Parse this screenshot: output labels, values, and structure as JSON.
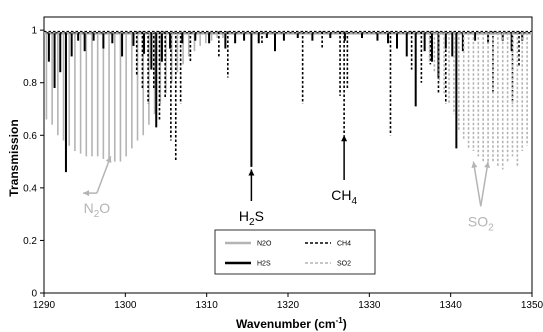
{
  "chart_data": {
    "type": "line",
    "xlabel": "Wavenumber (cm",
    "xlabel_superscript": "-1",
    "xlabel_close": ")",
    "ylabel": "Transmission",
    "xlim": [
      1290,
      1350
    ],
    "ylim": [
      0,
      1.05
    ],
    "x_ticks": [
      "1290",
      "1300",
      "1310",
      "1320",
      "1330",
      "1340",
      "1350"
    ],
    "y_ticks": [
      "0",
      "0.2",
      "0.4",
      "0.6",
      "0.8",
      "1"
    ],
    "grid": false,
    "legend_position": "bottom-center",
    "series": [
      {
        "name": "N2O",
        "color": "#b4b4b4",
        "style": "solid",
        "lines": [
          {
            "x": 1290.3,
            "y": 0.66
          },
          {
            "x": 1291.0,
            "y": 0.64
          },
          {
            "x": 1291.7,
            "y": 0.6
          },
          {
            "x": 1292.4,
            "y": 0.58
          },
          {
            "x": 1293.1,
            "y": 0.56
          },
          {
            "x": 1293.8,
            "y": 0.54
          },
          {
            "x": 1294.5,
            "y": 0.53
          },
          {
            "x": 1295.2,
            "y": 0.52
          },
          {
            "x": 1295.9,
            "y": 0.52
          },
          {
            "x": 1296.6,
            "y": 0.52
          },
          {
            "x": 1297.3,
            "y": 0.51
          },
          {
            "x": 1298.0,
            "y": 0.51
          },
          {
            "x": 1298.7,
            "y": 0.5
          },
          {
            "x": 1299.4,
            "y": 0.5
          },
          {
            "x": 1300.1,
            "y": 0.52
          },
          {
            "x": 1300.8,
            "y": 0.55
          },
          {
            "x": 1301.5,
            "y": 0.58
          },
          {
            "x": 1302.2,
            "y": 0.6
          },
          {
            "x": 1302.9,
            "y": 0.64
          },
          {
            "x": 1303.6,
            "y": 0.68
          },
          {
            "x": 1304.3,
            "y": 0.72
          },
          {
            "x": 1305.0,
            "y": 0.76
          },
          {
            "x": 1305.7,
            "y": 0.8
          },
          {
            "x": 1306.4,
            "y": 0.84
          },
          {
            "x": 1307.1,
            "y": 0.87
          },
          {
            "x": 1307.8,
            "y": 0.9
          },
          {
            "x": 1308.5,
            "y": 0.92
          },
          {
            "x": 1309.2,
            "y": 0.94
          },
          {
            "x": 1309.9,
            "y": 0.95
          },
          {
            "x": 1310.6,
            "y": 0.96
          },
          {
            "x": 1311.3,
            "y": 0.97
          },
          {
            "x": 1312.0,
            "y": 0.97
          }
        ]
      },
      {
        "name": "H2S",
        "color": "#000000",
        "style": "solid",
        "lines": [
          {
            "x": 1290.6,
            "y": 0.88
          },
          {
            "x": 1291.3,
            "y": 0.78
          },
          {
            "x": 1292.0,
            "y": 0.84
          },
          {
            "x": 1292.7,
            "y": 0.46
          },
          {
            "x": 1293.4,
            "y": 0.9
          },
          {
            "x": 1294.2,
            "y": 0.96
          },
          {
            "x": 1295.0,
            "y": 0.92
          },
          {
            "x": 1296.1,
            "y": 0.96
          },
          {
            "x": 1297.3,
            "y": 0.93
          },
          {
            "x": 1298.4,
            "y": 0.95
          },
          {
            "x": 1299.6,
            "y": 0.9
          },
          {
            "x": 1301.0,
            "y": 0.94
          },
          {
            "x": 1302.3,
            "y": 0.91
          },
          {
            "x": 1303.2,
            "y": 0.85
          },
          {
            "x": 1303.8,
            "y": 0.63
          },
          {
            "x": 1304.5,
            "y": 0.88
          },
          {
            "x": 1305.5,
            "y": 0.93
          },
          {
            "x": 1307.0,
            "y": 0.95
          },
          {
            "x": 1308.6,
            "y": 0.96
          },
          {
            "x": 1310.3,
            "y": 0.95
          },
          {
            "x": 1312.3,
            "y": 0.93
          },
          {
            "x": 1313.5,
            "y": 0.95
          },
          {
            "x": 1314.6,
            "y": 0.96
          },
          {
            "x": 1315.5,
            "y": 0.48
          },
          {
            "x": 1316.4,
            "y": 0.95
          },
          {
            "x": 1317.4,
            "y": 0.97
          },
          {
            "x": 1318.4,
            "y": 0.92
          },
          {
            "x": 1319.5,
            "y": 0.96
          },
          {
            "x": 1321.2,
            "y": 0.97
          },
          {
            "x": 1323.0,
            "y": 0.96
          },
          {
            "x": 1325.2,
            "y": 0.97
          },
          {
            "x": 1327.0,
            "y": 0.96
          },
          {
            "x": 1329.1,
            "y": 0.97
          },
          {
            "x": 1331.0,
            "y": 0.96
          },
          {
            "x": 1332.3,
            "y": 0.95
          },
          {
            "x": 1333.4,
            "y": 0.93
          },
          {
            "x": 1334.6,
            "y": 0.9
          },
          {
            "x": 1335.7,
            "y": 0.71
          },
          {
            "x": 1336.8,
            "y": 0.92
          },
          {
            "x": 1337.7,
            "y": 0.88
          },
          {
            "x": 1338.5,
            "y": 0.82
          },
          {
            "x": 1339.4,
            "y": 0.93
          },
          {
            "x": 1340.2,
            "y": 0.9
          },
          {
            "x": 1340.7,
            "y": 0.55
          },
          {
            "x": 1341.5,
            "y": 0.92
          },
          {
            "x": 1343.0,
            "y": 0.96
          },
          {
            "x": 1344.6,
            "y": 0.95
          },
          {
            "x": 1346.4,
            "y": 0.96
          },
          {
            "x": 1347.5,
            "y": 0.92
          },
          {
            "x": 1348.8,
            "y": 0.96
          }
        ]
      },
      {
        "name": "CH4",
        "color": "#000000",
        "style": "dashed",
        "lines": [
          {
            "x": 1301.4,
            "y": 0.83
          },
          {
            "x": 1302.1,
            "y": 0.78
          },
          {
            "x": 1302.8,
            "y": 0.72
          },
          {
            "x": 1303.5,
            "y": 0.78
          },
          {
            "x": 1304.2,
            "y": 0.66
          },
          {
            "x": 1304.9,
            "y": 0.74
          },
          {
            "x": 1305.6,
            "y": 0.58
          },
          {
            "x": 1306.2,
            "y": 0.5
          },
          {
            "x": 1306.8,
            "y": 0.72
          },
          {
            "x": 1308.0,
            "y": 0.88
          },
          {
            "x": 1311.5,
            "y": 0.9
          },
          {
            "x": 1312.6,
            "y": 0.82
          },
          {
            "x": 1316.8,
            "y": 0.95
          },
          {
            "x": 1321.8,
            "y": 0.72
          },
          {
            "x": 1324.2,
            "y": 0.93
          },
          {
            "x": 1326.4,
            "y": 0.75
          },
          {
            "x": 1326.9,
            "y": 0.6
          },
          {
            "x": 1327.3,
            "y": 0.78
          },
          {
            "x": 1332.6,
            "y": 0.6
          },
          {
            "x": 1335.2,
            "y": 0.85
          },
          {
            "x": 1336.4,
            "y": 0.8
          },
          {
            "x": 1337.5,
            "y": 0.87
          },
          {
            "x": 1338.5,
            "y": 0.76
          },
          {
            "x": 1339.4,
            "y": 0.72
          },
          {
            "x": 1345.2,
            "y": 0.76
          },
          {
            "x": 1347.6,
            "y": 0.72
          },
          {
            "x": 1348.4,
            "y": 0.86
          }
        ]
      },
      {
        "name": "SO2",
        "color": "#b4b4b4",
        "style": "dashed",
        "lines": [
          {
            "x": 1337.4,
            "y": 0.88
          },
          {
            "x": 1338.0,
            "y": 0.84
          },
          {
            "x": 1338.6,
            "y": 0.8
          },
          {
            "x": 1339.2,
            "y": 0.76
          },
          {
            "x": 1339.8,
            "y": 0.72
          },
          {
            "x": 1340.4,
            "y": 0.68
          },
          {
            "x": 1341.0,
            "y": 0.62
          },
          {
            "x": 1341.6,
            "y": 0.58
          },
          {
            "x": 1342.2,
            "y": 0.55
          },
          {
            "x": 1342.8,
            "y": 0.54
          },
          {
            "x": 1343.4,
            "y": 0.52
          },
          {
            "x": 1344.0,
            "y": 0.5
          },
          {
            "x": 1344.6,
            "y": 0.5
          },
          {
            "x": 1345.2,
            "y": 0.5
          },
          {
            "x": 1345.8,
            "y": 0.48
          },
          {
            "x": 1346.4,
            "y": 0.47
          },
          {
            "x": 1347.0,
            "y": 0.5
          },
          {
            "x": 1347.6,
            "y": 0.52
          },
          {
            "x": 1348.2,
            "y": 0.48
          },
          {
            "x": 1348.8,
            "y": 0.54
          },
          {
            "x": 1349.4,
            "y": 0.56
          }
        ]
      }
    ],
    "annotations": [
      {
        "label": "N",
        "sub": "2",
        "tail": "O",
        "color": "#b4b4b4",
        "arrow_x": [
          1294.8,
          1298.2
        ],
        "arrow_y": [
          0.38,
          0.52
        ],
        "arrow_from": 0.38
      },
      {
        "label": "H",
        "sub": "2",
        "tail": "S",
        "color": "#000000",
        "arrow_x": [
          1315.5
        ],
        "arrow_y": [
          0.47
        ],
        "arrow_from": 0.35
      },
      {
        "label": "CH",
        "sub": "4",
        "tail": "",
        "color": "#000000",
        "arrow_x": [
          1326.9
        ],
        "arrow_y": [
          0.6
        ],
        "arrow_from": 0.43
      },
      {
        "label": "SO",
        "sub": "2",
        "tail": "",
        "color": "#b4b4b4",
        "arrow_x": [
          1342.8,
          1344.6
        ],
        "arrow_y": [
          0.5,
          0.5
        ],
        "arrow_from": 0.33
      }
    ],
    "legend": [
      {
        "label": "N2O",
        "color": "#b4b4b4",
        "style": "solid"
      },
      {
        "label": "CH4",
        "color": "#000000",
        "style": "dashed"
      },
      {
        "label": "H2S",
        "color": "#000000",
        "style": "solid"
      },
      {
        "label": "SO2",
        "color": "#b4b4b4",
        "style": "dashed"
      }
    ]
  }
}
